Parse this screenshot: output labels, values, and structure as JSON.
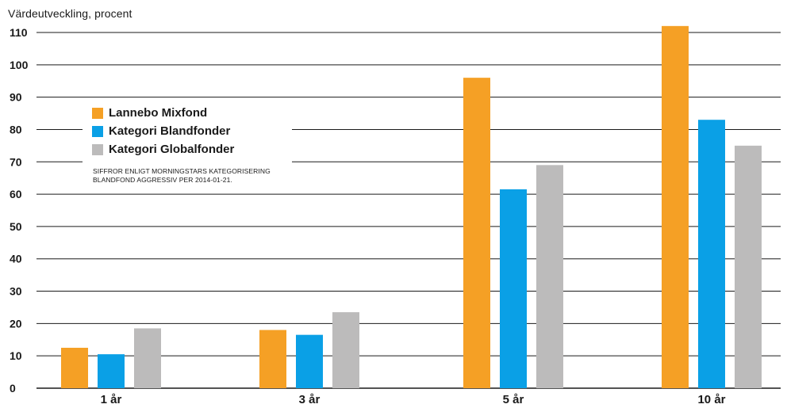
{
  "chart_data": {
    "type": "bar",
    "ylabel": "Värdeutveckling, procent",
    "categories": [
      "1 år",
      "3 år",
      "5 år",
      "10 år"
    ],
    "series": [
      {
        "name": "Lannebo Mixfond",
        "color": "#f5a025",
        "values": [
          12.5,
          18,
          96,
          112
        ]
      },
      {
        "name": "Kategori Blandfonder",
        "color": "#0aa0e6",
        "values": [
          10.5,
          16.5,
          61.5,
          83
        ]
      },
      {
        "name": "Kategori Globalfonder",
        "color": "#bcbbbb",
        "values": [
          18.5,
          23.5,
          69,
          75
        ]
      }
    ],
    "ylim": [
      0,
      110
    ],
    "yticks": [
      0,
      10,
      20,
      30,
      40,
      50,
      60,
      70,
      80,
      90,
      100,
      110
    ],
    "grid": true,
    "legend_position": "top-left",
    "annotation": [
      "SIFFROR ENLIGT MORNINGSTARS KATEGORISERING",
      "BLANDFOND AGGRESSIV PER 2014-01-21."
    ]
  }
}
